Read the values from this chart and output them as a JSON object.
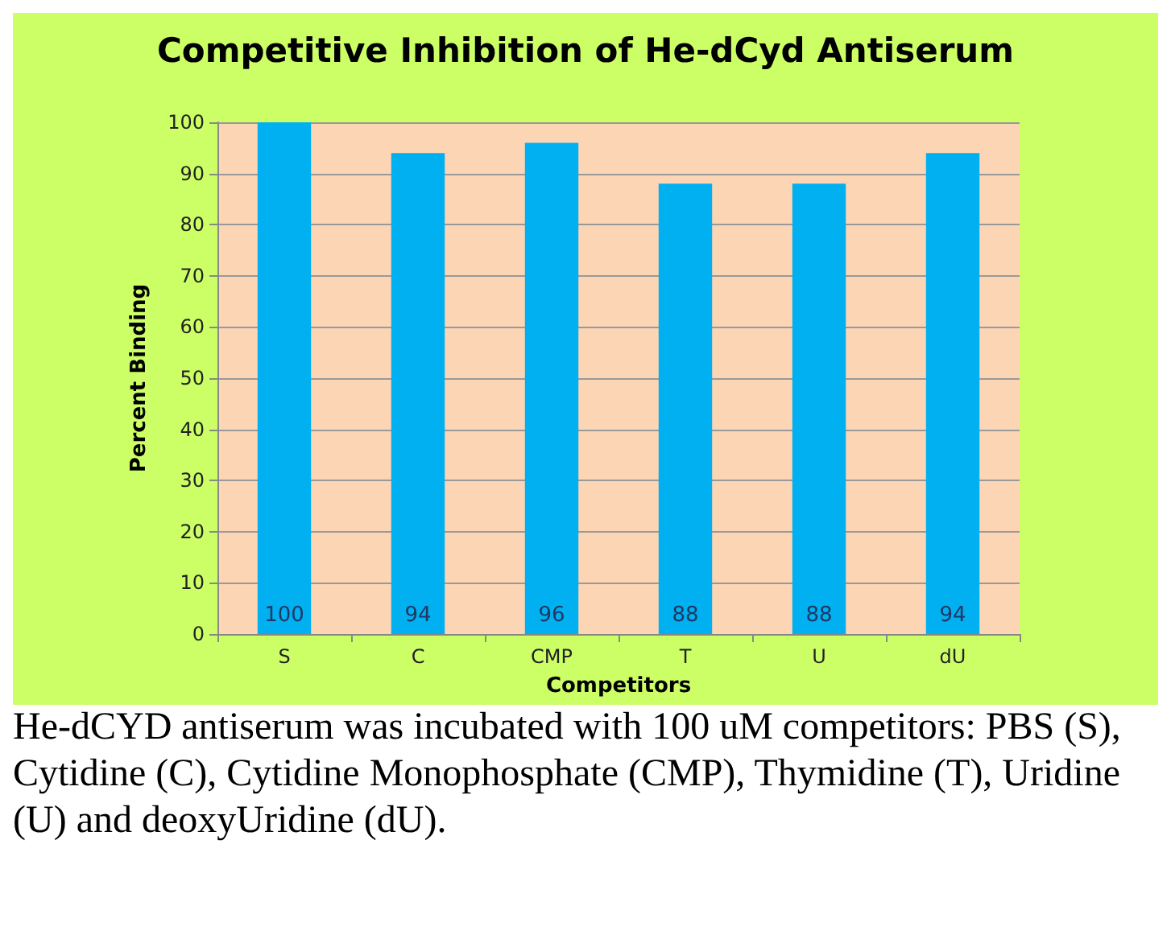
{
  "chart_data": {
    "type": "bar",
    "title": "Competitive Inhibition of He-dCyd Antiserum",
    "xlabel": "Competitors",
    "ylabel": "Percent Binding",
    "categories": [
      "S",
      "C",
      "CMP",
      "T",
      "U",
      "dU"
    ],
    "values": [
      100,
      94,
      96,
      88,
      88,
      94
    ],
    "color": "#00b0f0",
    "data_labels": true,
    "ylim": [
      0,
      100
    ],
    "yticks": [
      0,
      10,
      20,
      30,
      40,
      50,
      60,
      70,
      80,
      90,
      100
    ],
    "grid": "y",
    "annotations": [
      "He-dCYD antiserum was incubated with 100 uM competitors: PBS (S), Cytidine (C), Cytidine Monophosphate (CMP), Thymidine (T), Uridine (U) and deoxyUridine (dU)."
    ]
  }
}
